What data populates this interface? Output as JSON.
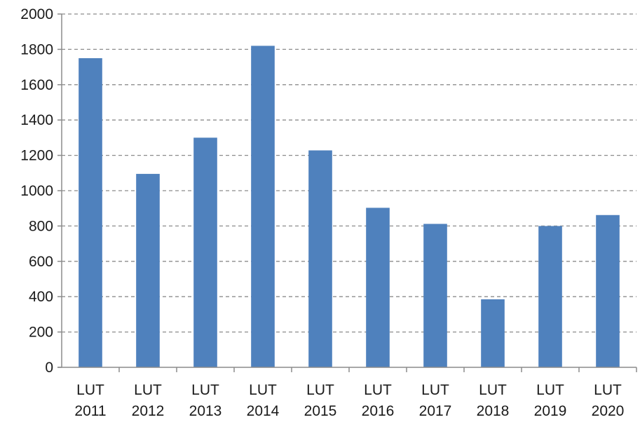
{
  "chart_data": {
    "type": "bar",
    "title": "",
    "xlabel": "",
    "ylabel": "",
    "categories": [
      [
        "LUT",
        "2011"
      ],
      [
        "LUT",
        "2012"
      ],
      [
        "LUT",
        "2013"
      ],
      [
        "LUT",
        "2014"
      ],
      [
        "LUT",
        "2015"
      ],
      [
        "LUT",
        "2016"
      ],
      [
        "LUT",
        "2017"
      ],
      [
        "LUT",
        "2018"
      ],
      [
        "LUT",
        "2019"
      ],
      [
        "LUT",
        "2020"
      ]
    ],
    "values": [
      1750,
      1095,
      1300,
      1820,
      1228,
      903,
      812,
      385,
      800,
      862
    ],
    "ylim": [
      0,
      2000
    ],
    "yticks": [
      0,
      200,
      400,
      600,
      800,
      1000,
      1200,
      1400,
      1600,
      1800,
      2000
    ],
    "grid": true,
    "legend": "none",
    "bar_color": "#4F81BD"
  }
}
